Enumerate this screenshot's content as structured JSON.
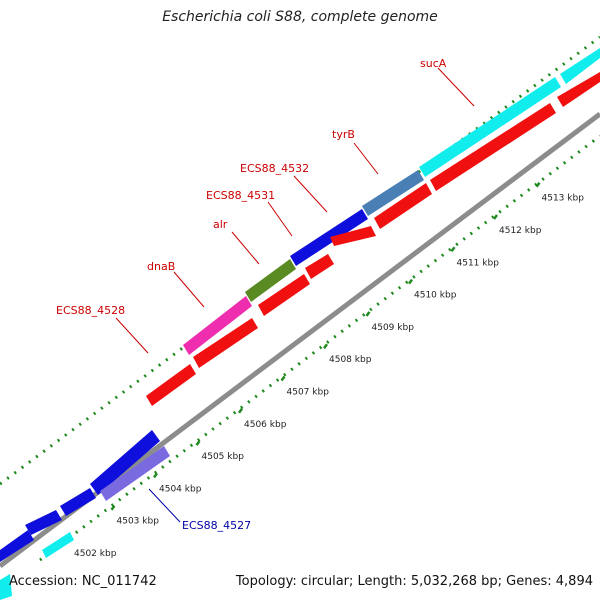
{
  "title": "Escherichia coli S88, complete genome",
  "footer": {
    "accession": "Accession: NC_011742",
    "summary": "Topology: circular; Length: 5,032,268 bp; Genes: 4,894"
  },
  "colors": {
    "backbone": "#8c8c8c",
    "tick": "#1f8a1f",
    "red_label": "#cc0000",
    "blue_label": "#0000aa",
    "cyan": "#11ecec",
    "red": "#f01010",
    "blue": "#0f0fdd",
    "steelblue": "#4a7fb5",
    "olive": "#5a8a22",
    "magenta": "#ee2eae",
    "purple": "#7a6adf"
  },
  "ticks": [
    "4502 kbp",
    "4503 kbp",
    "4504 kbp",
    "4505 kbp",
    "4506 kbp",
    "4507 kbp",
    "4508 kbp",
    "4509 kbp",
    "4510 kbp",
    "4511 kbp",
    "4512 kbp",
    "4513 kbp"
  ],
  "labels": {
    "sucA": "sucA",
    "tyrB": "tyrB",
    "ecs4532": "ECS88_4532",
    "ecs4531": "ECS88_4531",
    "alr": "alr",
    "dnaB": "dnaB",
    "ecs4528": "ECS88_4528",
    "ecs4527": "ECS88_4527"
  }
}
